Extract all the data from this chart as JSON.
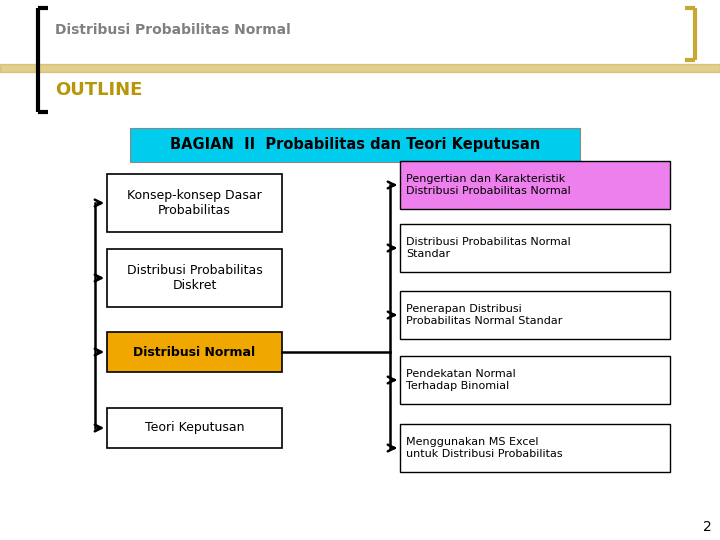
{
  "title": "Distribusi Probabilitas Normal",
  "outline_label": "OUTLINE",
  "header_text": "BAGIAN  II  Probabilitas dan Teori Keputusan",
  "header_bg": "#00CCEE",
  "header_text_color": "#000000",
  "left_boxes": [
    {
      "text": "Konsep-konsep Dasar\nProbabilitas",
      "bg": "#FFFFFF",
      "border": "#000000",
      "bold": false
    },
    {
      "text": "Distribusi Probabilitas\nDiskret",
      "bg": "#FFFFFF",
      "border": "#000000",
      "bold": false
    },
    {
      "text": "Distribusi Normal",
      "bg": "#F0A800",
      "border": "#000000",
      "bold": true
    },
    {
      "text": "Teori Keputusan",
      "bg": "#FFFFFF",
      "border": "#000000",
      "bold": false
    }
  ],
  "right_boxes": [
    {
      "text": "Pengertian dan Karakteristik\nDistribusi Probabilitas Normal",
      "bg": "#EE80EE",
      "border": "#000000"
    },
    {
      "text": "Distribusi Probabilitas Normal\nStandar",
      "bg": "#FFFFFF",
      "border": "#000000"
    },
    {
      "text": "Penerapan Distribusi\nProbabilitas Normal Standar",
      "bg": "#FFFFFF",
      "border": "#000000"
    },
    {
      "text": "Pendekatan Normal\nTerhadap Binomial",
      "bg": "#FFFFFF",
      "border": "#000000"
    },
    {
      "text": "Menggunakan MS Excel\nuntuk Distribusi Probabilitas",
      "bg": "#FFFFFF",
      "border": "#000000"
    }
  ],
  "bg_color": "#FFFFFF",
  "gold_color": "#C8A832",
  "outline_color": "#B8960A",
  "title_color": "#808080",
  "page_number": "2",
  "fig_w": 7.2,
  "fig_h": 5.4,
  "dpi": 100
}
